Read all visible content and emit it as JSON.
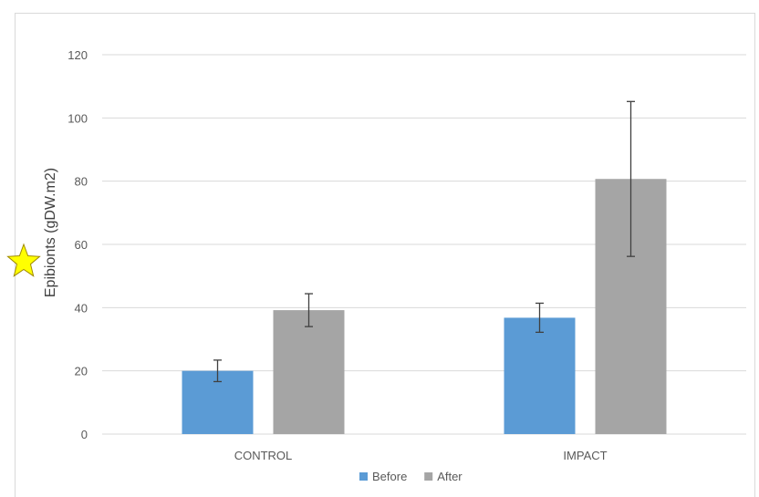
{
  "chart_data": {
    "type": "bar",
    "title": "",
    "xlabel": "",
    "ylabel": "Epibionts (gDW.m2)",
    "categories": [
      "CONTROL",
      "IMPACT"
    ],
    "series": [
      {
        "name": "Before",
        "color": "#5b9bd5",
        "values": [
          20,
          36.8
        ],
        "errors": [
          3.4,
          4.6
        ]
      },
      {
        "name": "After",
        "color": "#a5a5a5",
        "values": [
          39.2,
          80.7
        ],
        "errors": [
          5.2,
          24.5
        ]
      }
    ],
    "ylim": [
      0,
      120
    ],
    "yticks": [
      0,
      20,
      40,
      60,
      80,
      100,
      120
    ],
    "grid": true,
    "legend": "bottom",
    "gridline_color": "#d9d9d9",
    "errorbar_color": "#404040"
  },
  "marker": {
    "icon": "star-icon",
    "color": "#ffff00"
  }
}
